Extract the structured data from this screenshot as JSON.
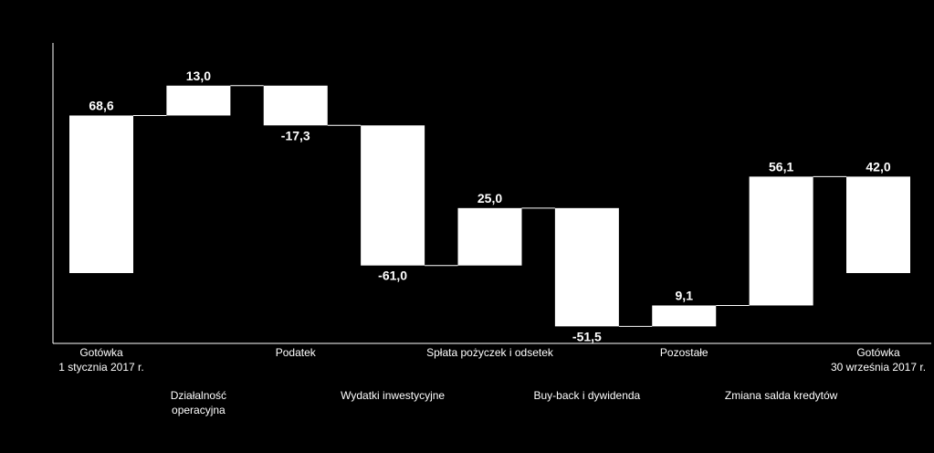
{
  "chart_data": {
    "type": "waterfall",
    "categories": [
      "Gotówka\n1 stycznia 2017 r.",
      "Działalność\noperacyjna",
      "Podatek",
      "Wydatki inwestycyjne",
      "Spłata pożyczek i odsetek",
      "Buy-back i dywidenda",
      "Pozostałe",
      "Zmiana salda kredytów",
      "Gotówka\n30 września 2017 r."
    ],
    "values": [
      68.6,
      13.0,
      -17.3,
      -61.0,
      25.0,
      -51.5,
      9.1,
      56.1,
      42.0
    ],
    "value_labels": [
      "68,6",
      "13,0",
      "-17,3",
      "-61,0",
      "25,0",
      "-51,5",
      "9,1",
      "56,1",
      "42,0"
    ],
    "bar_kinds": [
      "total",
      "delta",
      "delta",
      "delta",
      "delta",
      "delta",
      "delta",
      "delta",
      "total"
    ],
    "label_rows": [
      1,
      0,
      1,
      0,
      1,
      0,
      1,
      0,
      1
    ],
    "ylim": [
      -40,
      90
    ],
    "colors": {
      "background": "#000000",
      "bars": "#ffffff",
      "text": "#ffffff"
    }
  }
}
